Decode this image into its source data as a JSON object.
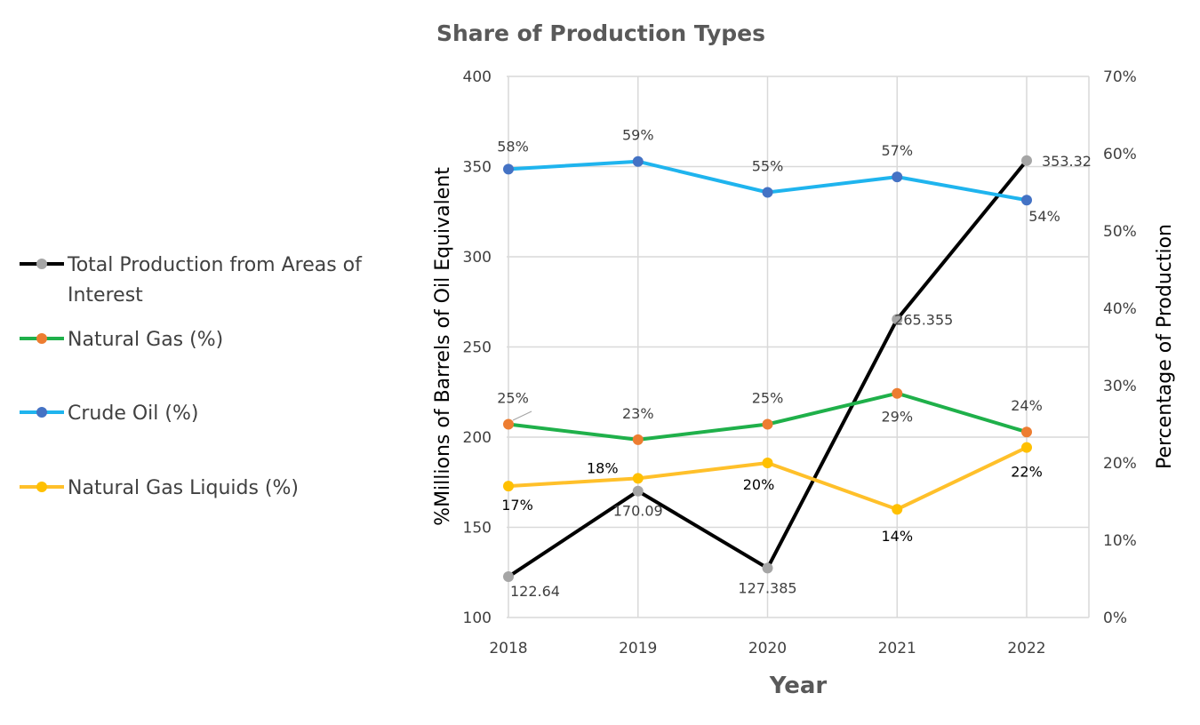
{
  "chart_data": {
    "type": "line",
    "title": "Share of Production Types",
    "xlabel": "Year",
    "ylabel": "%Millions of Barrels of Oil Equivalent",
    "y2label": "Percentage of Production",
    "categories": [
      "2018",
      "2019",
      "2020",
      "2021",
      "2022"
    ],
    "ylim": [
      100,
      400
    ],
    "yticks": [
      "100",
      "150",
      "200",
      "250",
      "300",
      "350",
      "400"
    ],
    "y2lim": [
      0,
      70
    ],
    "y2ticks": [
      "0%",
      "10%",
      "20%",
      "30%",
      "40%",
      "50%",
      "60%",
      "70%"
    ],
    "grid": true,
    "legend_position": "left",
    "series": [
      {
        "name": "Total Production from Areas of Interest",
        "name_lines": [
          "Total Production from Areas of",
          "Interest"
        ],
        "axis": "primary",
        "values": [
          122.64,
          170.09,
          127.385,
          265.355,
          353.32
        ],
        "labels": [
          "122.64",
          "170.09",
          "127.385",
          "265.355",
          "353.32"
        ],
        "line_color": "#000000",
        "marker_color": "#A5A5A5"
      },
      {
        "name": "Natural Gas (%)",
        "axis": "secondary",
        "values": [
          25,
          23,
          25,
          29,
          24
        ],
        "labels": [
          "25%",
          "23%",
          "25%",
          "29%",
          "24%"
        ],
        "line_color": "#1FB04A",
        "marker_color": "#ED7D31"
      },
      {
        "name": "Crude Oil (%)",
        "axis": "secondary",
        "values": [
          58,
          59,
          55,
          57,
          54
        ],
        "labels": [
          "58%",
          "59%",
          "55%",
          "57%",
          "54%"
        ],
        "line_color": "#1FB4EE",
        "marker_color": "#4472C4"
      },
      {
        "name": "Natural Gas Liquids (%)",
        "axis": "secondary",
        "values": [
          17,
          18,
          20,
          14,
          22
        ],
        "labels": [
          "17%",
          "18%",
          "20%",
          "14%",
          "22%"
        ],
        "line_color": "#FFC02A",
        "marker_color": "#FFC000"
      }
    ]
  }
}
